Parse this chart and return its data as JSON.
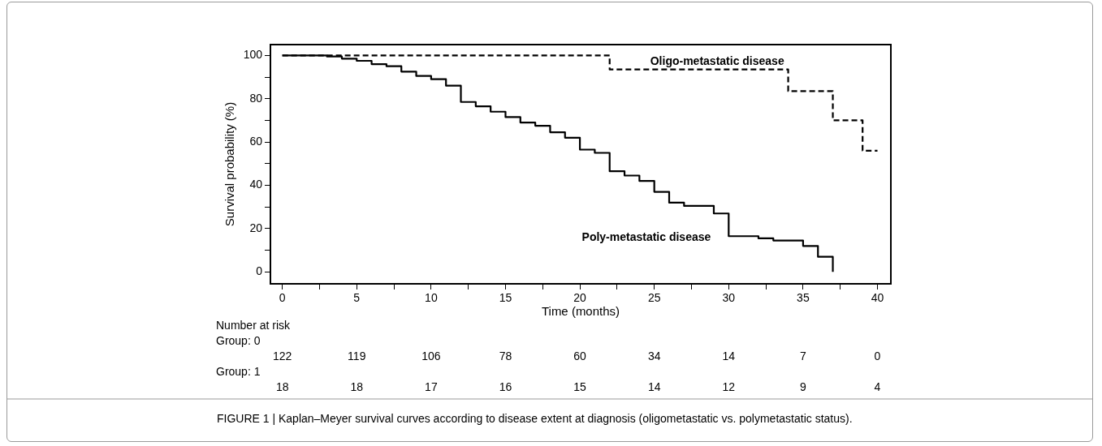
{
  "chart_data": {
    "type": "step",
    "xlabel": "Time (months)",
    "ylabel": "Survival probability (%)",
    "xlim": [
      -0.8,
      40.9
    ],
    "ylim": [
      -5.5,
      105
    ],
    "xticks": [
      0,
      {
        "value": 2.5,
        "label": null
      },
      5,
      {
        "value": 7.5,
        "label": null
      },
      10,
      {
        "value": 12.5,
        "label": null
      },
      15,
      {
        "value": 17.5,
        "label": null
      },
      20,
      {
        "value": 22.5,
        "label": null
      },
      25,
      {
        "value": 27.5,
        "label": null
      },
      30,
      {
        "value": 32.5,
        "label": null
      },
      35,
      {
        "value": 37.5,
        "label": null
      },
      40
    ],
    "yticks": [
      0,
      {
        "value": 10,
        "label": null
      },
      20,
      {
        "value": 30,
        "label": null
      },
      40,
      {
        "value": 50,
        "label": null
      },
      60,
      {
        "value": 70,
        "label": null
      },
      80,
      {
        "value": 90,
        "label": null
      },
      100
    ],
    "grid": false,
    "legend": false,
    "marker": "none",
    "series": [
      {
        "name": "Oligo-metastatic disease",
        "color": "#000000",
        "line_style": "dashed",
        "x": [
          0,
          22,
          34,
          37,
          39,
          40
        ],
        "values": [
          100,
          93.5,
          83.5,
          70,
          56,
          56
        ]
      },
      {
        "name": "Poly-metastatic disease",
        "color": "#000000",
        "line_style": "solid",
        "x": [
          0,
          3,
          4,
          5,
          6,
          7,
          8,
          9,
          10,
          11,
          12,
          13,
          14,
          15,
          16,
          17,
          18,
          19,
          20,
          21,
          22,
          23,
          24,
          25,
          26,
          27,
          29,
          30,
          32,
          33,
          35,
          36,
          37
        ],
        "values": [
          100,
          99.5,
          98.5,
          97.5,
          96,
          95,
          92.5,
          90.5,
          89,
          86,
          78.5,
          76.5,
          74,
          71.5,
          69,
          67.5,
          64.5,
          62,
          56.5,
          55,
          46.5,
          44.5,
          42,
          37,
          32,
          30.5,
          27,
          16.5,
          15.5,
          14.5,
          12,
          7,
          0
        ]
      }
    ],
    "annotations": [
      "Number at risk",
      "Group: 0",
      "122",
      "119",
      "106",
      "78",
      "60",
      "34",
      "14",
      "7",
      "0",
      "Group: 1",
      "18",
      "18",
      "17",
      "16",
      "15",
      "14",
      "12",
      "9",
      "4",
      "FIGURE 1 | Kaplan–Meyer survival curves according to disease extent at diagnosis (oligometastatic vs. polymetastatic status)."
    ]
  }
}
